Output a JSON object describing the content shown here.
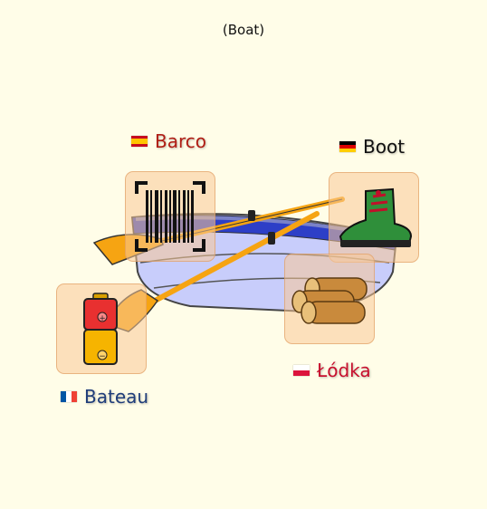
{
  "header": {
    "caption": "(Boat)"
  },
  "words": [
    {
      "language": "Spanish",
      "label": "Barco",
      "color": "#b01d14"
    },
    {
      "language": "German",
      "label": "Boot",
      "color": "#111111"
    },
    {
      "language": "French",
      "label": "Bateau",
      "color": "#1f3d7a"
    },
    {
      "language": "Polish",
      "label": "Łódka",
      "color": "#c8102e"
    }
  ],
  "cards": [
    {
      "icon": "barcode-icon"
    },
    {
      "icon": "boot-icon"
    },
    {
      "icon": "battery-icon"
    },
    {
      "icon": "logs-icon"
    }
  ],
  "colors": {
    "background": "#fffde8",
    "card_fill": "#fbc996",
    "boat_hull": "#c8cdfb",
    "boat_stripe": "#2d3fc7",
    "oar": "#f6a412"
  }
}
